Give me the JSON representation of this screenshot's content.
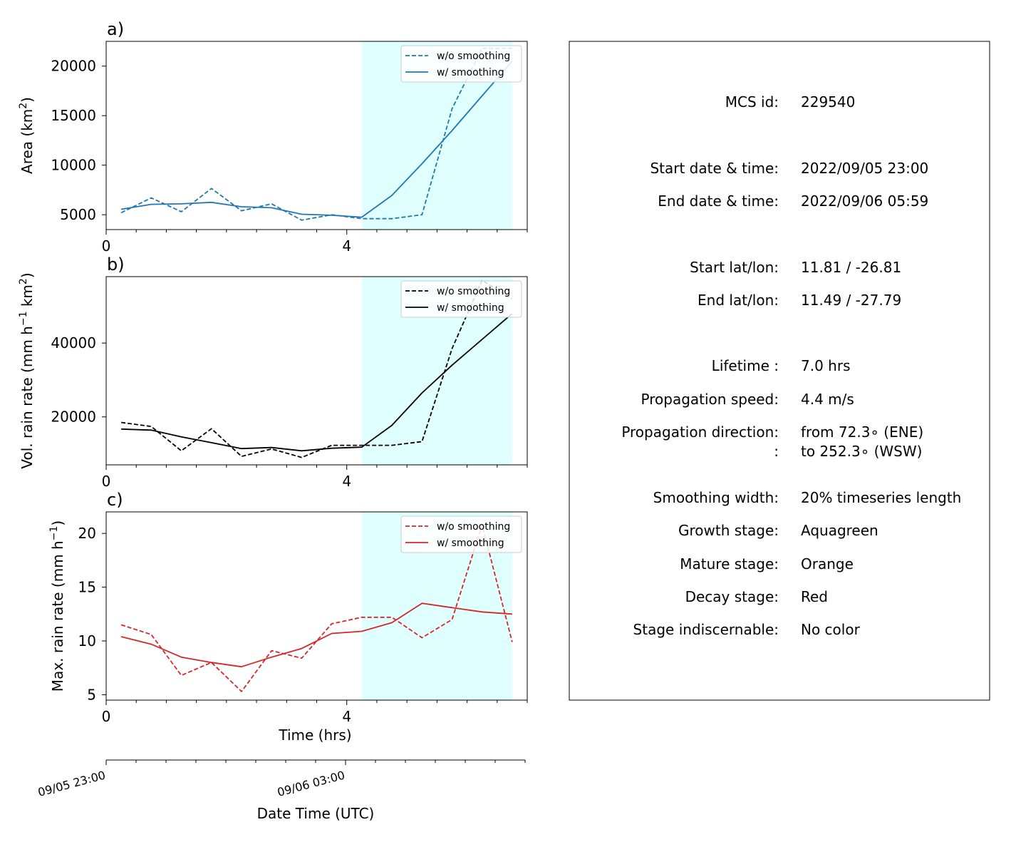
{
  "chart_data": [
    {
      "type": "line",
      "panel_label": "a)",
      "ylabel": "Area  (km",
      "ylabel_sup": "2",
      "ylabel_end": ")",
      "xlim": [
        0,
        7
      ],
      "ylim": [
        3500,
        22500
      ],
      "yticks": [
        5000,
        10000,
        15000,
        20000
      ],
      "xticks": [
        0,
        4
      ],
      "color": "#1f77b4",
      "highlight_x": [
        4.25,
        6.75
      ],
      "highlight_color": "#e0ffff",
      "legend": [
        "w/o smoothing",
        "w/ smoothing"
      ],
      "legend_position": "top-right",
      "x": [
        0.25,
        0.75,
        1.25,
        1.75,
        2.25,
        2.75,
        3.25,
        3.75,
        4.25,
        4.75,
        5.25,
        5.75,
        6.25,
        6.75
      ],
      "series": [
        {
          "name": "w/o smoothing",
          "dashed": true,
          "values": [
            5200,
            6700,
            5300,
            7650,
            5400,
            6100,
            4450,
            5000,
            4600,
            4600,
            5000,
            15700,
            21800,
            21800
          ]
        },
        {
          "name": "w/ smoothing",
          "dashed": false,
          "values": [
            5550,
            6050,
            6100,
            6250,
            5800,
            5700,
            5050,
            4950,
            4750,
            6950,
            10150,
            13500,
            17000,
            20500
          ]
        }
      ]
    },
    {
      "type": "line",
      "panel_label": "b)",
      "ylabel": "Vol. rain rate (mm h",
      "ylabel_sup": "−1",
      "ylabel_mid": " km",
      "ylabel_sup2": "2",
      "ylabel_end": ")",
      "xlim": [
        0,
        7
      ],
      "ylim": [
        7000,
        58000
      ],
      "yticks": [
        20000,
        40000
      ],
      "xticks": [
        0,
        4
      ],
      "color": "#000000",
      "highlight_x": [
        4.25,
        6.75
      ],
      "highlight_color": "#e0ffff",
      "legend": [
        "w/o smoothing",
        "w/ smoothing"
      ],
      "legend_position": "top-right",
      "x": [
        0.25,
        0.75,
        1.25,
        1.75,
        2.25,
        2.75,
        3.25,
        3.75,
        4.25,
        4.75,
        5.25,
        5.75,
        6.25,
        6.75
      ],
      "series": [
        {
          "name": "w/o smoothing",
          "dashed": true,
          "values": [
            18500,
            17400,
            10800,
            16800,
            9300,
            11300,
            9000,
            12300,
            12300,
            12300,
            13300,
            38500,
            57000,
            52000
          ]
        },
        {
          "name": "w/ smoothing",
          "dashed": false,
          "values": [
            16700,
            16400,
            14600,
            13000,
            11400,
            11700,
            10800,
            11500,
            11800,
            17700,
            26500,
            34000,
            41000,
            48000
          ]
        }
      ]
    },
    {
      "type": "line",
      "panel_label": "c)",
      "ylabel": "Max. rain rate  (mm h",
      "ylabel_sup": "−1",
      "ylabel_end": ")",
      "xlim": [
        0,
        7
      ],
      "ylim": [
        4.5,
        22
      ],
      "yticks": [
        5,
        10,
        15,
        20
      ],
      "xticks": [
        0,
        4
      ],
      "xlabel": "Time (hrs)",
      "color": "#d62728",
      "highlight_x": [
        4.25,
        6.75
      ],
      "highlight_color": "#e0ffff",
      "legend": [
        "w/o smoothing",
        "w/ smoothing"
      ],
      "legend_position": "top-right",
      "x": [
        0.25,
        0.75,
        1.25,
        1.75,
        2.25,
        2.75,
        3.25,
        3.75,
        4.25,
        4.75,
        5.25,
        5.75,
        6.25,
        6.75
      ],
      "series": [
        {
          "name": "w/o smoothing",
          "dashed": true,
          "values": [
            11.5,
            10.6,
            6.8,
            8.0,
            5.3,
            9.1,
            8.4,
            11.6,
            12.2,
            12.2,
            10.3,
            12.0,
            20.8,
            9.9
          ]
        },
        {
          "name": "w/ smoothing",
          "dashed": false,
          "values": [
            10.4,
            9.7,
            8.5,
            8.0,
            7.6,
            8.5,
            9.3,
            10.7,
            10.9,
            11.7,
            13.5,
            13.1,
            12.7,
            12.5
          ]
        }
      ]
    }
  ],
  "datetime_axis": {
    "label": "Date Time (UTC)",
    "tick_labels": [
      {
        "x": 0,
        "text": "09/05 23:00"
      },
      {
        "x": 4,
        "text": "09/06 03:00"
      }
    ]
  },
  "info": {
    "rows": [
      {
        "label": "MCS id:",
        "value": "229540"
      },
      {
        "label": "Start date & time:",
        "value": "2022/09/05 23:00"
      },
      {
        "label": "End date & time:",
        "value": "2022/09/06 05:59"
      },
      {
        "label": "Start lat/lon:",
        "value": "11.81 / -26.81"
      },
      {
        "label": "End lat/lon:",
        "value": "11.49 / -27.79"
      },
      {
        "label": "Lifetime :",
        "value": "7.0 hrs"
      },
      {
        "label": "Propagation speed:",
        "value": "4.4 m/s"
      },
      {
        "label": "Propagation direction:",
        "value": "from  72.3∘ (ENE)"
      },
      {
        "label": ":",
        "value": "to   252.3∘ (WSW)"
      },
      {
        "label": "Smoothing width:",
        "value": "20% timeseries length"
      },
      {
        "label": "Growth stage:",
        "value": "Aquagreen"
      },
      {
        "label": "Mature stage:",
        "value": "Orange"
      },
      {
        "label": "Decay stage:",
        "value": "Red"
      },
      {
        "label": "Stage indiscernable:",
        "value": "No color"
      }
    ]
  }
}
